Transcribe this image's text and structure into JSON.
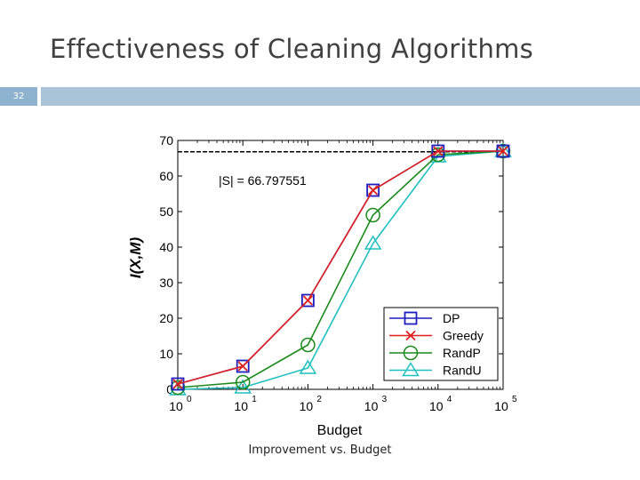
{
  "slide": {
    "title": "Effectiveness of Cleaning Algorithms",
    "number": "32",
    "caption": "Improvement vs. Budget",
    "bar_color": "#a9c3d9",
    "number_box_color": "#8fb2cf"
  },
  "chart_data": {
    "type": "line",
    "xscale": "log",
    "x": [
      1,
      10,
      100,
      1000,
      10000,
      100000
    ],
    "xticks": [
      {
        "base": "10",
        "exp": "0"
      },
      {
        "base": "10",
        "exp": "1"
      },
      {
        "base": "10",
        "exp": "2"
      },
      {
        "base": "10",
        "exp": "3"
      },
      {
        "base": "10",
        "exp": "4"
      },
      {
        "base": "10",
        "exp": "5"
      }
    ],
    "yticks": [
      "0",
      "10",
      "20",
      "30",
      "40",
      "50",
      "60",
      "70"
    ],
    "xlabel": "Budget",
    "ylabel": "I(X,M)",
    "ylim": [
      0,
      70
    ],
    "xlim": [
      1,
      100000
    ],
    "grid": false,
    "legend_position": "bottom-right",
    "reference_line": {
      "value": 66.797551,
      "label": "|S| = 66.797551",
      "style": "dashed",
      "color": "#000000"
    },
    "series": [
      {
        "name": "DP",
        "color": "#1f1fbf",
        "marker": "square",
        "values": [
          1.5,
          6.5,
          25,
          56,
          67,
          67
        ]
      },
      {
        "name": "Greedy",
        "color": "#e02020",
        "marker": "x",
        "values": [
          1.5,
          6.5,
          25,
          56,
          67,
          67
        ]
      },
      {
        "name": "RandP",
        "color": "#1a8a1a",
        "marker": "circle",
        "values": [
          0.5,
          2,
          12.5,
          49,
          66,
          67
        ]
      },
      {
        "name": "RandU",
        "color": "#1fbfbf",
        "marker": "triangle",
        "values": [
          0,
          0.5,
          6,
          41,
          65.5,
          67
        ]
      }
    ]
  }
}
